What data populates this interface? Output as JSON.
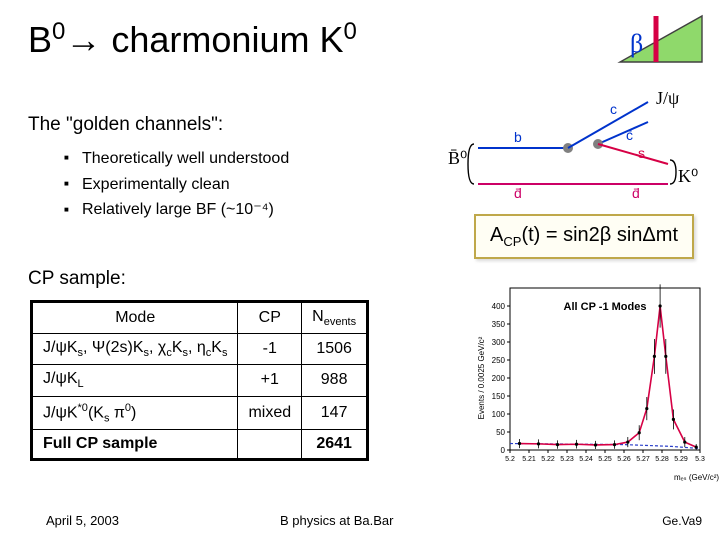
{
  "title_html": "B<sup>0</sup>→ charmonium K<sup>0</sup>",
  "beta_label": "β",
  "triangle": {
    "fill": "#8fd96b",
    "stroke": "#404040",
    "beta_color": "#0033cc",
    "angle_line": "#d60045"
  },
  "golden_heading": "The \"golden channels\":",
  "bullets": [
    "Theoretically well understood",
    "Experimentally clean",
    "Relatively large BF (~10⁻⁴)"
  ],
  "feynman": {
    "labels": {
      "Bbar0": "B̄⁰",
      "K0": "K⁰",
      "Jpsi": "J/ψ",
      "b": "b",
      "dbar": "d̄",
      "c": "c",
      "cbar": "c̄",
      "s": "s",
      "dbar2": "d̄"
    },
    "colors": {
      "b": "#0033cc",
      "d": "#cc0066",
      "c": "#0033cc",
      "cbar": "#0033cc",
      "s": "#d60045",
      "vertex": "#808080"
    }
  },
  "equation_html": "A<span class='acp-sub'>CP</span>(t) = sin2β sinΔmt",
  "cp_heading": "CP sample:",
  "table": {
    "headers": [
      "Mode",
      "CP",
      "Nₑᵥₑₙₜₛ"
    ],
    "headers_html": [
      "Mode",
      "CP",
      "N<span class='sub'>events</span>"
    ],
    "rows": [
      {
        "mode_html": "J/ψK<span class='sub'>s</span>, Ψ(2s)K<span class='sub'>s</span>, χ<span class='sub'>c</span>K<span class='sub'>s</span>, η<span class='sub'>c</span>K<span class='sub'>s</span>",
        "cp": "-1",
        "n": "1506"
      },
      {
        "mode_html": "J/ψK<span class='sub'>L</span>",
        "cp": "+1",
        "n": "988"
      },
      {
        "mode_html": "J/ψK<span class='sup'>*0</span>(K<span class='sub'>s</span> π<span class='sup'>0</span>)",
        "cp": "mixed",
        "n": "147"
      }
    ],
    "full": {
      "label": "Full CP sample",
      "n": "2641"
    }
  },
  "plot": {
    "title": "All CP -1 Modes",
    "xlabel": "mₑₛ (GeV/c²)",
    "ylabel": "Events / 0.0025 GeV/c²",
    "xlim": [
      5.2,
      5.3
    ],
    "xticks": [
      "5.2",
      "5.21",
      "5.22",
      "5.23",
      "5.24",
      "5.25",
      "5.26",
      "5.27",
      "5.28",
      "5.29",
      "5.3"
    ],
    "ylim": [
      0,
      450
    ],
    "yticks": [
      0,
      50,
      100,
      150,
      200,
      250,
      300,
      350,
      400
    ],
    "signal_color": "#d60045",
    "bg_color": "#2a3fc9",
    "data_points": [
      {
        "x": 5.205,
        "y": 18
      },
      {
        "x": 5.215,
        "y": 17
      },
      {
        "x": 5.225,
        "y": 15
      },
      {
        "x": 5.235,
        "y": 16
      },
      {
        "x": 5.245,
        "y": 14
      },
      {
        "x": 5.255,
        "y": 15
      },
      {
        "x": 5.262,
        "y": 22
      },
      {
        "x": 5.268,
        "y": 48
      },
      {
        "x": 5.272,
        "y": 115
      },
      {
        "x": 5.276,
        "y": 260
      },
      {
        "x": 5.279,
        "y": 400
      },
      {
        "x": 5.282,
        "y": 260
      },
      {
        "x": 5.286,
        "y": 85
      },
      {
        "x": 5.292,
        "y": 22
      },
      {
        "x": 5.298,
        "y": 8
      }
    ]
  },
  "footer": {
    "date": "April 5, 2003",
    "mid": "B physics at Ba.Bar",
    "page": "Ge.Va9"
  }
}
